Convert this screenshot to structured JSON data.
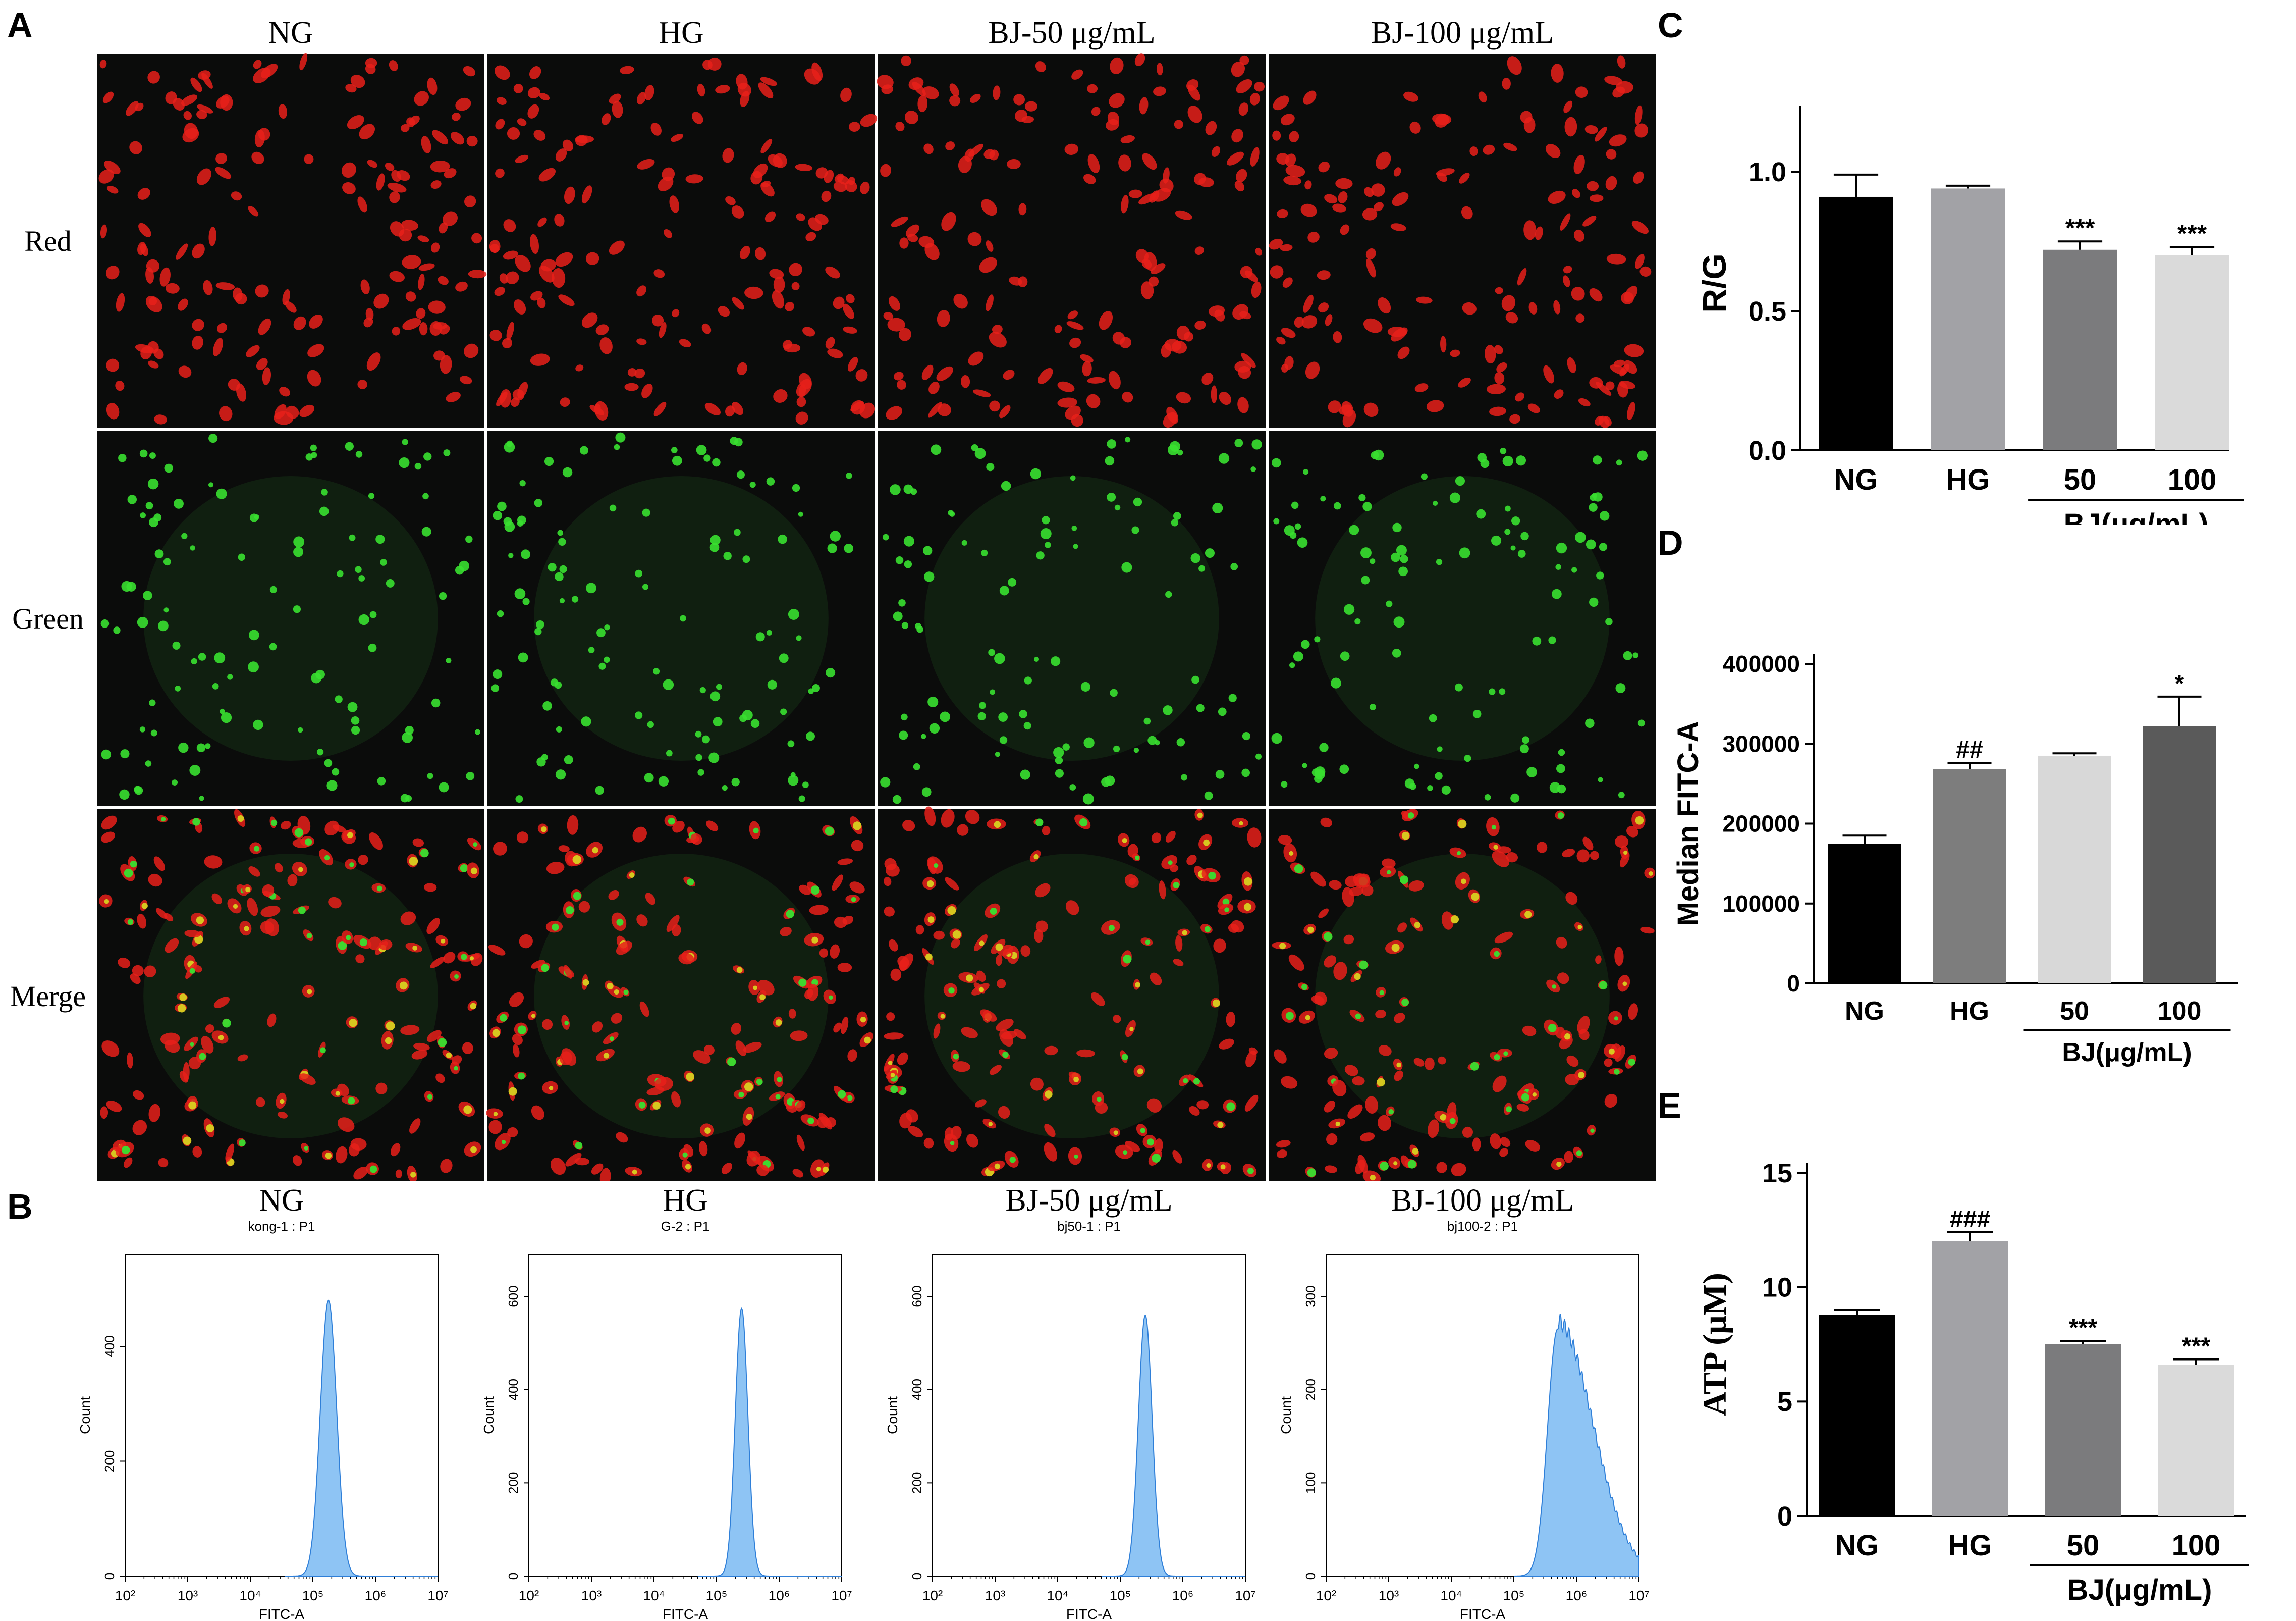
{
  "panel_letters": {
    "a": "A",
    "b": "B",
    "c": "C",
    "d": "D",
    "e": "E"
  },
  "micrographs": {
    "columns": [
      "NG",
      "HG",
      "BJ-50 μg/mL",
      "BJ-100 μg/mL"
    ],
    "rows": [
      "Red",
      "Green",
      "Merge"
    ],
    "colors": {
      "red": "#e8201a",
      "green": "#38e030",
      "yellow": "#d8d020",
      "background": "#0b0c0b"
    }
  },
  "chart_data": [
    {
      "id": "B",
      "type": "histogram",
      "panels": [
        {
          "title": "NG",
          "subtitle": "kong-1 : P1",
          "xlabel": "FITC-A",
          "ylabel": "Count",
          "yticks": [
            0,
            200,
            400
          ],
          "ymax": 560,
          "peak_log": 5.25,
          "peak_count": 480,
          "sigma": 0.13,
          "skew_tail": 0.0
        },
        {
          "title": "HG",
          "subtitle": "G-2 : P1",
          "xlabel": "FITC-A",
          "ylabel": "Count",
          "yticks": [
            0,
            200,
            400,
            600
          ],
          "ymax": 690,
          "peak_log": 5.4,
          "peak_count": 575,
          "sigma": 0.1,
          "skew_tail": 0.0
        },
        {
          "title": "BJ-50 μg/mL",
          "subtitle": "bj50-1 : P1",
          "xlabel": "FITC-A",
          "ylabel": "Count",
          "yticks": [
            0,
            200,
            400,
            600
          ],
          "ymax": 690,
          "peak_log": 5.4,
          "peak_count": 560,
          "sigma": 0.11,
          "skew_tail": 0.0
        },
        {
          "title": "BJ-100 μg/mL",
          "subtitle": "bj100-2 : P1",
          "xlabel": "FITC-A",
          "ylabel": "Count",
          "yticks": [
            0,
            100,
            200,
            300
          ],
          "ymax": 345,
          "peak_log": 5.7,
          "peak_count": 265,
          "sigma": 0.16,
          "skew_tail": 1.0
        }
      ],
      "xticks": [
        "10²",
        "10³",
        "10⁴",
        "10⁵",
        "10⁶",
        "10⁷"
      ],
      "xlim_log": [
        2,
        7
      ],
      "fill": "#8ec4f4",
      "stroke": "#2f7fd8"
    },
    {
      "id": "C",
      "type": "bar",
      "categories": [
        "NG",
        "HG",
        "50",
        "100"
      ],
      "values": [
        0.91,
        0.94,
        0.72,
        0.7
      ],
      "errors": [
        0.08,
        0.01,
        0.03,
        0.03
      ],
      "annotations": [
        "",
        "",
        "***",
        "***"
      ],
      "colors": [
        "#000000",
        "#a2a2a6",
        "#7b7b7d",
        "#dadada"
      ],
      "ylabel": "R/G",
      "yticks": [
        "0.0",
        "0.5",
        "1.0"
      ],
      "ytick_values": [
        0,
        0.5,
        1.0
      ],
      "ylim": [
        0,
        1.2
      ],
      "group_label": "BJ(μg/mL)"
    },
    {
      "id": "D",
      "type": "bar",
      "categories": [
        "NG",
        "HG",
        "50",
        "100"
      ],
      "values": [
        175000,
        268000,
        285000,
        322000
      ],
      "errors": [
        10000,
        8000,
        3000,
        37000
      ],
      "annotations": [
        "",
        "##",
        "",
        "*"
      ],
      "colors": [
        "#000000",
        "#7d7d7d",
        "#d8d8d8",
        "#5a5a5a"
      ],
      "ylabel": "Median FITC-A",
      "yticks": [
        "0",
        "100000",
        "200000",
        "300000",
        "400000"
      ],
      "ytick_values": [
        0,
        100000,
        200000,
        300000,
        400000
      ],
      "ylim": [
        0,
        400000
      ],
      "group_label": "BJ(μg/mL)"
    },
    {
      "id": "E",
      "type": "bar",
      "categories": [
        "NG",
        "HG",
        "50",
        "100"
      ],
      "values": [
        8.8,
        12.0,
        7.5,
        6.6
      ],
      "errors": [
        0.2,
        0.4,
        0.15,
        0.25
      ],
      "annotations": [
        "",
        "###",
        "***",
        "***"
      ],
      "colors": [
        "#000000",
        "#a2a2a6",
        "#7b7b7d",
        "#dadada"
      ],
      "ylabel": "ATP (μM)",
      "yticks": [
        "0",
        "5",
        "10",
        "15"
      ],
      "ytick_values": [
        0,
        5,
        10,
        15
      ],
      "ylim": [
        0,
        15
      ],
      "group_label": "BJ(μg/mL)"
    }
  ]
}
